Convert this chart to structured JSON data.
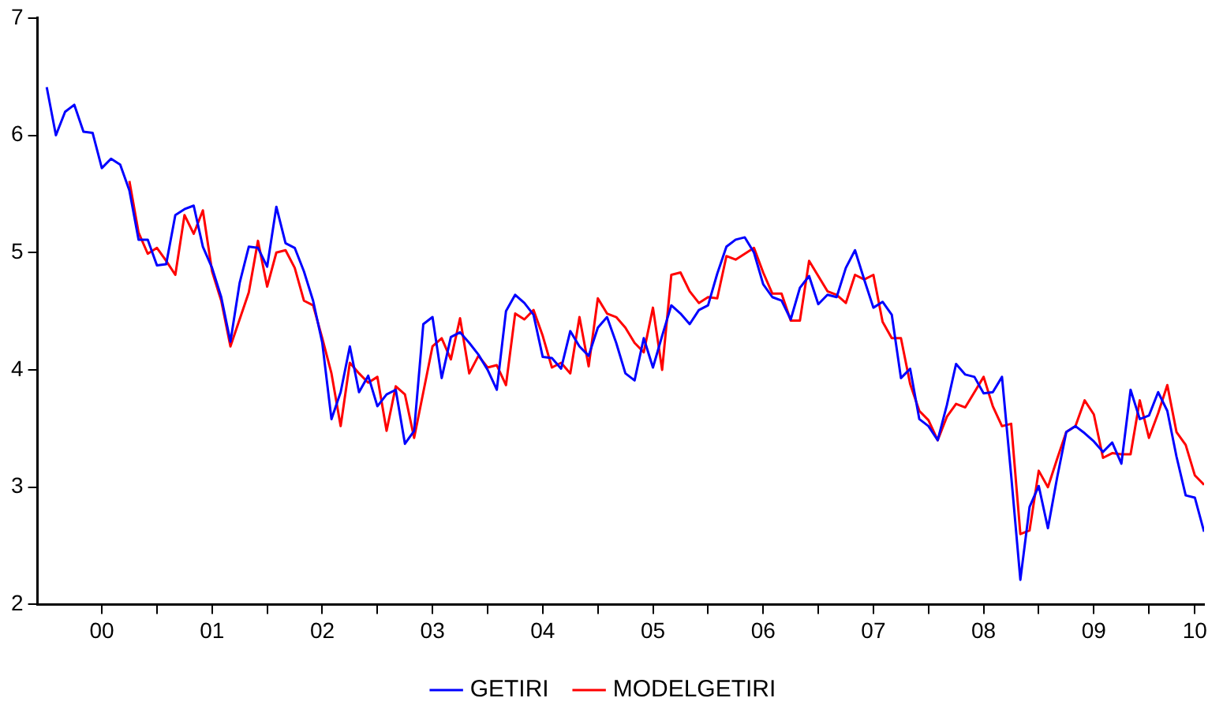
{
  "chart_data": {
    "type": "line",
    "x": [
      "2000-01",
      "2000-02",
      "2000-03",
      "2000-04",
      "2000-05",
      "2000-06",
      "2000-07",
      "2000-08",
      "2000-09",
      "2000-10",
      "2000-11",
      "2000-12",
      "2001-01",
      "2001-02",
      "2001-03",
      "2001-04",
      "2001-05",
      "2001-06",
      "2001-07",
      "2001-08",
      "2001-09",
      "2001-10",
      "2001-11",
      "2001-12",
      "2002-01",
      "2002-02",
      "2002-03",
      "2002-04",
      "2002-05",
      "2002-06",
      "2002-07",
      "2002-08",
      "2002-09",
      "2002-10",
      "2002-11",
      "2002-12",
      "2003-01",
      "2003-02",
      "2003-03",
      "2003-04",
      "2003-05",
      "2003-06",
      "2003-07",
      "2003-08",
      "2003-09",
      "2003-10",
      "2003-11",
      "2003-12",
      "2004-01",
      "2004-02",
      "2004-03",
      "2004-04",
      "2004-05",
      "2004-06",
      "2004-07",
      "2004-08",
      "2004-09",
      "2004-10",
      "2004-11",
      "2004-12",
      "2005-01",
      "2005-02",
      "2005-03",
      "2005-04",
      "2005-05",
      "2005-06",
      "2005-07",
      "2005-08",
      "2005-09",
      "2005-10",
      "2005-11",
      "2005-12",
      "2006-01",
      "2006-02",
      "2006-03",
      "2006-04",
      "2006-05",
      "2006-06",
      "2006-07",
      "2006-08",
      "2006-09",
      "2006-10",
      "2006-11",
      "2006-12",
      "2007-01",
      "2007-02",
      "2007-03",
      "2007-04",
      "2007-05",
      "2007-06",
      "2007-07",
      "2007-08",
      "2007-09",
      "2007-10",
      "2007-11",
      "2007-12",
      "2008-01",
      "2008-02",
      "2008-03",
      "2008-04",
      "2008-05",
      "2008-06",
      "2008-07",
      "2008-08",
      "2008-09",
      "2008-10",
      "2008-11",
      "2008-12",
      "2009-01",
      "2009-02",
      "2009-03",
      "2009-04",
      "2009-05",
      "2009-06",
      "2009-07",
      "2009-08",
      "2009-09",
      "2009-10",
      "2009-11",
      "2009-12",
      "2010-01",
      "2010-02",
      "2010-03",
      "2010-04",
      "2010-05",
      "2010-06",
      "2010-07"
    ],
    "series": [
      {
        "name": "GETIRI",
        "color": "#0000ff",
        "values": [
          6.41,
          6.0,
          6.2,
          6.26,
          6.03,
          6.02,
          5.72,
          5.8,
          5.75,
          5.53,
          5.11,
          5.11,
          4.89,
          4.9,
          5.32,
          5.37,
          5.4,
          5.05,
          4.87,
          4.62,
          4.24,
          4.74,
          5.05,
          5.04,
          4.88,
          5.39,
          5.08,
          5.04,
          4.84,
          4.59,
          4.23,
          3.58,
          3.81,
          4.2,
          3.81,
          3.95,
          3.69,
          3.79,
          3.83,
          3.37,
          3.48,
          4.39,
          4.45,
          3.93,
          4.28,
          4.32,
          4.23,
          4.13,
          4.0,
          3.83,
          4.5,
          4.64,
          4.57,
          4.47,
          4.11,
          4.1,
          4.01,
          4.33,
          4.2,
          4.12,
          4.36,
          4.45,
          4.23,
          3.97,
          3.91,
          4.27,
          4.02,
          4.29,
          4.55,
          4.48,
          4.39,
          4.51,
          4.55,
          4.82,
          5.05,
          5.11,
          5.13,
          5.0,
          4.73,
          4.62,
          4.59,
          4.43,
          4.7,
          4.8,
          4.56,
          4.64,
          4.62,
          4.87,
          5.02,
          4.77,
          4.53,
          4.58,
          4.47,
          3.93,
          4.01,
          3.58,
          3.52,
          3.4,
          3.7,
          4.05,
          3.96,
          3.94,
          3.8,
          3.81,
          3.94,
          3.1,
          2.21,
          2.83,
          3.01,
          2.65,
          3.08,
          3.47,
          3.52,
          3.46,
          3.39,
          3.3,
          3.38,
          3.2,
          3.83,
          3.58,
          3.61,
          3.81,
          3.65,
          3.26,
          2.93,
          2.91,
          2.62
        ]
      },
      {
        "name": "MODELGETIRI",
        "color": "#ff0000",
        "values": [
          null,
          null,
          null,
          null,
          null,
          null,
          null,
          null,
          null,
          5.61,
          5.17,
          4.99,
          5.04,
          4.93,
          4.81,
          5.32,
          5.16,
          5.36,
          4.84,
          4.59,
          4.2,
          4.43,
          4.66,
          5.1,
          4.71,
          5.0,
          5.02,
          4.87,
          4.59,
          4.55,
          4.27,
          3.97,
          3.52,
          4.06,
          3.97,
          3.89,
          3.94,
          3.48,
          3.86,
          3.79,
          3.42,
          3.81,
          4.2,
          4.27,
          4.09,
          4.44,
          3.97,
          4.12,
          4.02,
          4.04,
          3.87,
          4.48,
          4.43,
          4.51,
          4.29,
          4.02,
          4.06,
          3.97,
          4.45,
          4.03,
          4.61,
          4.48,
          4.45,
          4.36,
          4.23,
          4.15,
          4.53,
          4.0,
          4.81,
          4.83,
          4.67,
          4.57,
          4.62,
          4.61,
          4.97,
          4.94,
          4.99,
          5.04,
          4.83,
          4.65,
          4.65,
          4.42,
          4.42,
          4.93,
          4.8,
          4.67,
          4.64,
          4.57,
          4.81,
          4.77,
          4.81,
          4.41,
          4.27,
          4.27,
          3.88,
          3.65,
          3.57,
          3.4,
          3.6,
          3.71,
          3.68,
          3.81,
          3.94,
          3.69,
          3.52,
          3.54,
          2.6,
          2.63,
          3.14,
          3.0,
          3.24,
          3.47,
          3.52,
          3.74,
          3.62,
          3.25,
          3.29,
          3.28,
          3.28,
          3.74,
          3.42,
          3.63,
          3.87,
          3.47,
          3.36,
          3.1,
          3.02
        ]
      }
    ],
    "xlim": [
      "1999-12",
      "2010-07"
    ],
    "xticks": [
      {
        "value": "2000-07",
        "label": "00"
      },
      {
        "value": "2001-01",
        "label": null
      },
      {
        "value": "2001-07",
        "label": "01"
      },
      {
        "value": "2002-01",
        "label": null
      },
      {
        "value": "2002-07",
        "label": "02"
      },
      {
        "value": "2003-01",
        "label": null
      },
      {
        "value": "2003-07",
        "label": "03"
      },
      {
        "value": "2004-01",
        "label": null
      },
      {
        "value": "2004-07",
        "label": "04"
      },
      {
        "value": "2005-01",
        "label": null
      },
      {
        "value": "2005-07",
        "label": "05"
      },
      {
        "value": "2006-01",
        "label": null
      },
      {
        "value": "2006-07",
        "label": "06"
      },
      {
        "value": "2007-01",
        "label": null
      },
      {
        "value": "2007-07",
        "label": "07"
      },
      {
        "value": "2008-01",
        "label": null
      },
      {
        "value": "2008-07",
        "label": "08"
      },
      {
        "value": "2009-01",
        "label": null
      },
      {
        "value": "2009-07",
        "label": "09"
      },
      {
        "value": "2010-01",
        "label": null
      },
      {
        "value": "2010-06",
        "label": "10"
      }
    ],
    "ylim": [
      2,
      7
    ],
    "yticks": [
      2,
      3,
      4,
      5,
      6,
      7
    ],
    "grid": false,
    "legend": "bottom"
  }
}
